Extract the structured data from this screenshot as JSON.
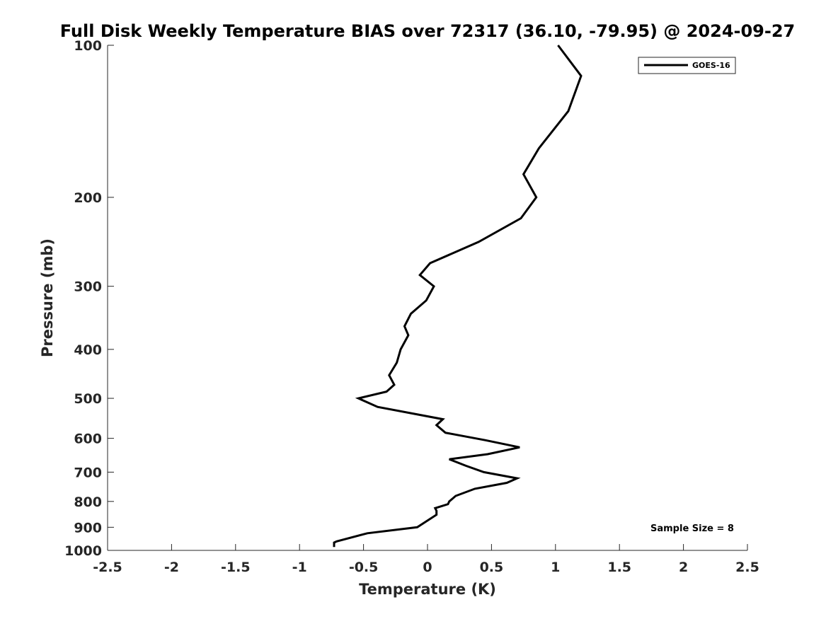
{
  "chart_data": {
    "type": "line",
    "title": "Full Disk Weekly Temperature BIAS over 72317 (36.10, -79.95) @ 2024-09-27",
    "xlabel": "Temperature (K)",
    "ylabel": "Pressure (mb)",
    "xlim": [
      -2.5,
      2.5
    ],
    "ylim": [
      100,
      1000
    ],
    "yscale": "log",
    "yaxis_reversed": true,
    "grid": false,
    "legend_position": "top-right",
    "x_ticks": [
      -2.5,
      -2,
      -1.5,
      -1,
      -0.5,
      0,
      0.5,
      1,
      1.5,
      2,
      2.5
    ],
    "x_tick_labels": [
      "-2.5",
      "-2",
      "-1.5",
      "-1",
      "-0.5",
      "0",
      "0.5",
      "1",
      "1.5",
      "2",
      "2.5"
    ],
    "y_ticks": [
      100,
      200,
      300,
      400,
      500,
      600,
      700,
      800,
      900,
      1000
    ],
    "y_tick_labels": [
      "100",
      "200",
      "300",
      "400",
      "500",
      "600",
      "700",
      "800",
      "900",
      "1000"
    ],
    "series": [
      {
        "name": "GOES-16",
        "color": "#000000",
        "points": [
          [
            1.02,
            100
          ],
          [
            1.2,
            115
          ],
          [
            1.1,
            135
          ],
          [
            0.87,
            160
          ],
          [
            0.75,
            180
          ],
          [
            0.85,
            200
          ],
          [
            0.73,
            220
          ],
          [
            0.4,
            245
          ],
          [
            0.02,
            270
          ],
          [
            -0.06,
            285
          ],
          [
            0.05,
            300
          ],
          [
            -0.01,
            320
          ],
          [
            -0.13,
            340
          ],
          [
            -0.18,
            360
          ],
          [
            -0.15,
            375
          ],
          [
            -0.21,
            400
          ],
          [
            -0.24,
            425
          ],
          [
            -0.3,
            450
          ],
          [
            -0.26,
            470
          ],
          [
            -0.32,
            485
          ],
          [
            -0.54,
            500
          ],
          [
            -0.39,
            520
          ],
          [
            0.12,
            550
          ],
          [
            0.07,
            565
          ],
          [
            0.14,
            585
          ],
          [
            0.45,
            605
          ],
          [
            0.72,
            625
          ],
          [
            0.47,
            645
          ],
          [
            0.17,
            660
          ],
          [
            0.3,
            680
          ],
          [
            0.44,
            700
          ],
          [
            0.7,
            720
          ],
          [
            0.62,
            735
          ],
          [
            0.37,
            755
          ],
          [
            0.22,
            780
          ],
          [
            0.17,
            800
          ],
          [
            0.16,
            810
          ],
          [
            0.06,
            825
          ],
          [
            0.07,
            835
          ],
          [
            0.07,
            850
          ],
          [
            -0.08,
            900
          ],
          [
            -0.47,
            925
          ],
          [
            -0.71,
            960
          ],
          [
            -0.73,
            965
          ],
          [
            -0.73,
            985
          ]
        ]
      }
    ],
    "annotations": [
      {
        "text": "Sample Size = 8",
        "position": "bottom-right"
      }
    ]
  }
}
